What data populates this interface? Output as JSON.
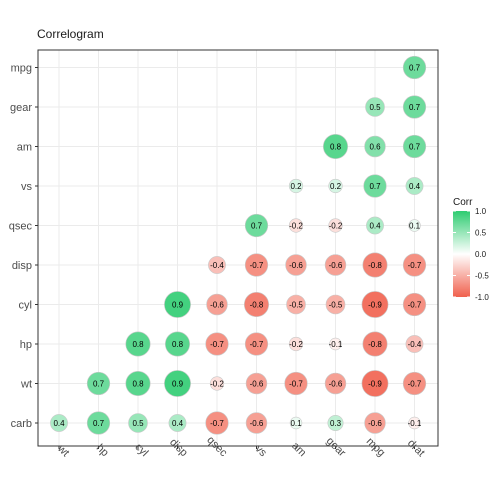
{
  "chart_data": {
    "type": "heatmap",
    "title": "Correlogram",
    "xlabel": "",
    "ylabel": "",
    "x_categories": [
      "wt",
      "hp",
      "cyl",
      "disp",
      "qsec",
      "vs",
      "am",
      "gear",
      "mpg",
      "drat"
    ],
    "y_categories": [
      "carb",
      "wt",
      "hp",
      "cyl",
      "disp",
      "qsec",
      "vs",
      "am",
      "gear",
      "mpg"
    ],
    "cells": [
      {
        "y": "mpg",
        "x": "drat",
        "value": 0.7
      },
      {
        "y": "gear",
        "x": "mpg",
        "value": 0.5
      },
      {
        "y": "gear",
        "x": "drat",
        "value": 0.7
      },
      {
        "y": "am",
        "x": "gear",
        "value": 0.8
      },
      {
        "y": "am",
        "x": "mpg",
        "value": 0.6
      },
      {
        "y": "am",
        "x": "drat",
        "value": 0.7
      },
      {
        "y": "vs",
        "x": "am",
        "value": 0.2
      },
      {
        "y": "vs",
        "x": "gear",
        "value": 0.2
      },
      {
        "y": "vs",
        "x": "mpg",
        "value": 0.7
      },
      {
        "y": "vs",
        "x": "drat",
        "value": 0.4
      },
      {
        "y": "qsec",
        "x": "vs",
        "value": 0.7
      },
      {
        "y": "qsec",
        "x": "am",
        "value": -0.2
      },
      {
        "y": "qsec",
        "x": "gear",
        "value": -0.2
      },
      {
        "y": "qsec",
        "x": "mpg",
        "value": 0.4
      },
      {
        "y": "qsec",
        "x": "drat",
        "value": 0.1
      },
      {
        "y": "disp",
        "x": "qsec",
        "value": -0.4
      },
      {
        "y": "disp",
        "x": "vs",
        "value": -0.7
      },
      {
        "y": "disp",
        "x": "am",
        "value": -0.6
      },
      {
        "y": "disp",
        "x": "gear",
        "value": -0.6
      },
      {
        "y": "disp",
        "x": "mpg",
        "value": -0.8
      },
      {
        "y": "disp",
        "x": "drat",
        "value": -0.7
      },
      {
        "y": "cyl",
        "x": "disp",
        "value": 0.9
      },
      {
        "y": "cyl",
        "x": "qsec",
        "value": -0.6
      },
      {
        "y": "cyl",
        "x": "vs",
        "value": -0.8
      },
      {
        "y": "cyl",
        "x": "am",
        "value": -0.5
      },
      {
        "y": "cyl",
        "x": "gear",
        "value": -0.5
      },
      {
        "y": "cyl",
        "x": "mpg",
        "value": -0.9
      },
      {
        "y": "cyl",
        "x": "drat",
        "value": -0.7
      },
      {
        "y": "hp",
        "x": "cyl",
        "value": 0.8
      },
      {
        "y": "hp",
        "x": "disp",
        "value": 0.8
      },
      {
        "y": "hp",
        "x": "qsec",
        "value": -0.7
      },
      {
        "y": "hp",
        "x": "vs",
        "value": -0.7
      },
      {
        "y": "hp",
        "x": "am",
        "value": -0.2
      },
      {
        "y": "hp",
        "x": "gear",
        "value": -0.1
      },
      {
        "y": "hp",
        "x": "mpg",
        "value": -0.8
      },
      {
        "y": "hp",
        "x": "drat",
        "value": -0.4
      },
      {
        "y": "wt",
        "x": "hp",
        "value": 0.7
      },
      {
        "y": "wt",
        "x": "cyl",
        "value": 0.8
      },
      {
        "y": "wt",
        "x": "disp",
        "value": 0.9
      },
      {
        "y": "wt",
        "x": "qsec",
        "value": -0.2
      },
      {
        "y": "wt",
        "x": "vs",
        "value": -0.6
      },
      {
        "y": "wt",
        "x": "am",
        "value": -0.7
      },
      {
        "y": "wt",
        "x": "gear",
        "value": -0.6
      },
      {
        "y": "wt",
        "x": "mpg",
        "value": -0.9
      },
      {
        "y": "wt",
        "x": "drat",
        "value": -0.7
      },
      {
        "y": "carb",
        "x": "wt",
        "value": 0.4
      },
      {
        "y": "carb",
        "x": "hp",
        "value": 0.7
      },
      {
        "y": "carb",
        "x": "cyl",
        "value": 0.5
      },
      {
        "y": "carb",
        "x": "disp",
        "value": 0.4
      },
      {
        "y": "carb",
        "x": "qsec",
        "value": -0.7
      },
      {
        "y": "carb",
        "x": "vs",
        "value": -0.6
      },
      {
        "y": "carb",
        "x": "am",
        "value": 0.1
      },
      {
        "y": "carb",
        "x": "gear",
        "value": 0.3
      },
      {
        "y": "carb",
        "x": "mpg",
        "value": -0.6
      },
      {
        "y": "carb",
        "x": "drat",
        "value": -0.1
      }
    ],
    "legend": {
      "title": "Corr",
      "placement": "right",
      "ticks": [
        "1.0",
        "0.5",
        "0.0",
        "-0.5",
        "-1.0"
      ],
      "tick_values": [
        1.0,
        0.5,
        0.0,
        -0.5,
        -1.0
      ],
      "range": [
        -1,
        1
      ]
    },
    "colors": {
      "positive": "#2ecc71",
      "mid": "#ffffff",
      "negative": "#f0604d",
      "grid": "#ebebeb",
      "panel_border": "#333333"
    },
    "grid": true,
    "x_tick_rotation_deg": 45
  }
}
